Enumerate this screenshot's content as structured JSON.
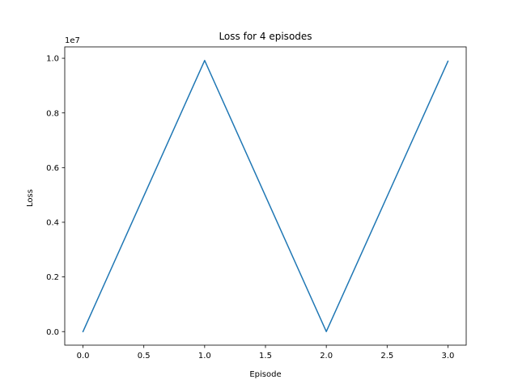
{
  "chart_data": {
    "type": "line",
    "title": "Loss for 4 episodes",
    "xlabel": "Episode",
    "ylabel": "Loss",
    "y_offset_label": "1e7",
    "x": [
      0,
      1,
      2,
      3
    ],
    "series": [
      {
        "values": [
          0,
          9920000,
          0,
          9890000
        ],
        "color": "#1f77b4"
      }
    ],
    "xlim": [
      -0.15,
      3.15
    ],
    "ylim": [
      -496000,
      10416000
    ],
    "xticks": [
      0,
      0.5,
      1,
      1.5,
      2,
      2.5,
      3
    ],
    "xtick_labels": [
      "0.0",
      "0.5",
      "1.0",
      "1.5",
      "2.0",
      "2.5",
      "3.0"
    ],
    "yticks": [
      0,
      2000000,
      4000000,
      6000000,
      8000000,
      10000000
    ],
    "ytick_labels": [
      "0.0",
      "0.2",
      "0.4",
      "0.6",
      "0.8",
      "1.0"
    ],
    "grid": false
  }
}
